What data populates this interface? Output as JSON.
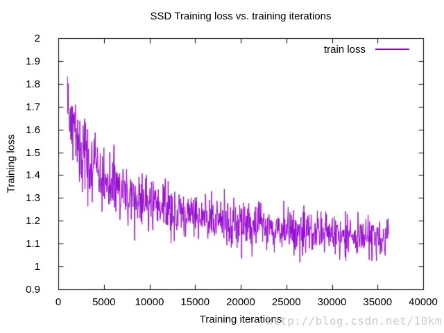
{
  "watermark": {
    "text": "http://blog.csdn.net/10km",
    "color": "#cccccc"
  },
  "chart_data": {
    "type": "line",
    "title": "SSD Training loss vs. training iterations",
    "xlabel": "Training iterations",
    "ylabel": "Training loss",
    "xlim": [
      0,
      40000
    ],
    "ylim": [
      0.9,
      2
    ],
    "grid": false,
    "border_color": "#000000",
    "tick_length": 7,
    "x_ticks": {
      "values": [
        0,
        5000,
        10000,
        15000,
        20000,
        25000,
        30000,
        35000,
        40000
      ],
      "labels": [
        "0",
        "5000",
        "10000",
        "15000",
        "20000",
        "25000",
        "30000",
        "35000",
        "40000"
      ]
    },
    "y_ticks": {
      "values": [
        0.9,
        1.0,
        1.1,
        1.2,
        1.3,
        1.4,
        1.5,
        1.6,
        1.7,
        1.8,
        1.9,
        2.0
      ],
      "labels": [
        "0.9",
        "1",
        "1.1",
        "1.2",
        "1.3",
        "1.4",
        "1.5",
        "1.6",
        "1.7",
        "1.8",
        "1.9",
        "2"
      ]
    },
    "legend": {
      "label": "train loss",
      "position": "top-right"
    },
    "series": [
      {
        "name": "train loss",
        "color": "#9400d3",
        "x_start": 1000,
        "x_end": 36200,
        "sample_step": 40,
        "trend_points": [
          [
            1000,
            1.74
          ],
          [
            1250,
            1.7
          ],
          [
            1500,
            1.64
          ],
          [
            2000,
            1.56
          ],
          [
            2500,
            1.51
          ],
          [
            3000,
            1.47
          ],
          [
            3500,
            1.445
          ],
          [
            4000,
            1.42
          ],
          [
            4500,
            1.4
          ],
          [
            5000,
            1.38
          ],
          [
            6000,
            1.35
          ],
          [
            7000,
            1.325
          ],
          [
            8000,
            1.3
          ],
          [
            9000,
            1.285
          ],
          [
            10000,
            1.27
          ],
          [
            11000,
            1.26
          ],
          [
            12000,
            1.25
          ],
          [
            13000,
            1.24
          ],
          [
            14000,
            1.235
          ],
          [
            15000,
            1.23
          ],
          [
            16000,
            1.215
          ],
          [
            17000,
            1.205
          ],
          [
            18000,
            1.2
          ],
          [
            19000,
            1.195
          ],
          [
            20000,
            1.19
          ],
          [
            21000,
            1.185
          ],
          [
            22000,
            1.18
          ],
          [
            23000,
            1.17
          ],
          [
            24000,
            1.165
          ],
          [
            25000,
            1.16
          ],
          [
            26000,
            1.155
          ],
          [
            27000,
            1.15
          ],
          [
            28000,
            1.148
          ],
          [
            29000,
            1.145
          ],
          [
            30000,
            1.14
          ],
          [
            31000,
            1.138
          ],
          [
            32000,
            1.135
          ],
          [
            33000,
            1.13
          ],
          [
            34000,
            1.128
          ],
          [
            35000,
            1.125
          ],
          [
            36200,
            1.12
          ]
        ],
        "noise": {
          "amp_start": 0.2,
          "amp_end": 0.105,
          "decay_iters": 7000,
          "seed": 42
        },
        "value_clamp": [
          0.96,
          1.93
        ]
      }
    ]
  }
}
